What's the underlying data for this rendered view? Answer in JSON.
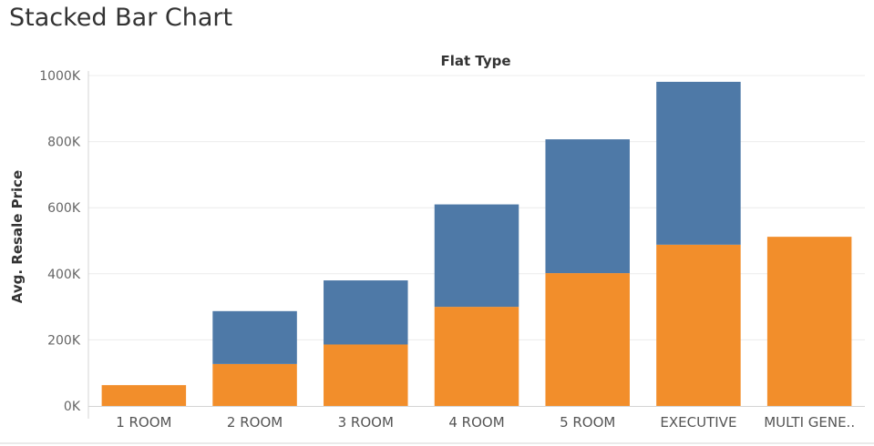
{
  "title": "Stacked Bar Chart",
  "chart_data": {
    "type": "bar",
    "stacked": true,
    "title": "Stacked Bar Chart",
    "column_header": "Flat Type",
    "ylabel": "Avg. Resale Price",
    "ylim": [
      0,
      1000000
    ],
    "yticks": [
      0,
      200000,
      400000,
      600000,
      800000,
      1000000
    ],
    "ytick_labels": [
      "0K",
      "200K",
      "400K",
      "600K",
      "800K",
      "1000K"
    ],
    "categories": [
      "1 ROOM",
      "2 ROOM",
      "3 ROOM",
      "4 ROOM",
      "5 ROOM",
      "EXECUTIVE",
      "MULTI GENE.."
    ],
    "series": [
      {
        "color": "#f28e2b",
        "values": [
          63000,
          127000,
          186000,
          300000,
          402000,
          488000,
          512000
        ]
      },
      {
        "color": "#4e79a7",
        "values": [
          0,
          160000,
          194000,
          310000,
          405000,
          493000,
          0
        ]
      }
    ],
    "grid": true
  }
}
